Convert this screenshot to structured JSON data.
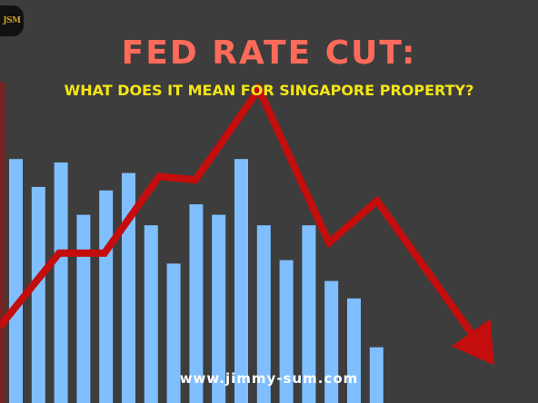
{
  "logo": {
    "text": "JSM"
  },
  "header": {
    "title": "FED RATE CUT:",
    "subtitle": "WHAT DOES IT MEAN FOR SINGAPORE PROPERTY?"
  },
  "footer": {
    "url": "www.jimmy-sum.com"
  },
  "colors": {
    "background": "#3d3d3d",
    "bars": "#7fbfff",
    "trend_line": "#c40d0d",
    "title": "#ff6b5b",
    "subtitle": "#f4e515"
  },
  "chart_data": {
    "type": "bar",
    "grid": false,
    "legend": "none",
    "ylim": [
      0,
      100
    ],
    "series": [
      {
        "kind": "bar",
        "values": [
          70,
          62,
          69,
          54,
          61,
          66,
          51,
          40,
          57,
          54,
          70,
          51,
          41,
          51,
          35,
          30,
          16
        ]
      },
      {
        "kind": "line",
        "values": [
          22,
          43,
          43,
          65,
          64,
          90,
          46,
          58,
          13
        ]
      }
    ]
  }
}
